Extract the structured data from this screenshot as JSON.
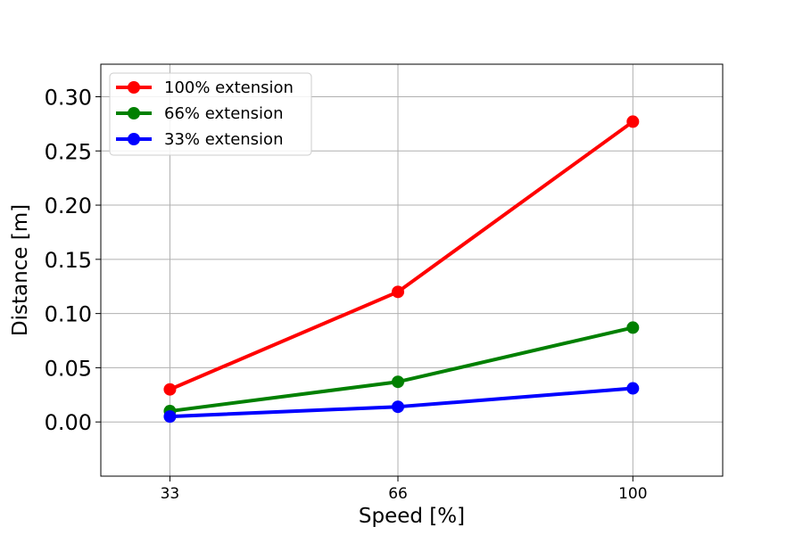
{
  "chart_data": {
    "type": "line",
    "title": "",
    "xlabel": "Speed [%]",
    "ylabel": "Distance [m]",
    "x": [
      33,
      66,
      100
    ],
    "xticks": [
      "33",
      "66",
      "100"
    ],
    "yticks": [
      "0.00",
      "0.05",
      "0.10",
      "0.15",
      "0.20",
      "0.25",
      "0.30"
    ],
    "ylim": [
      -0.05,
      0.33
    ],
    "grid": true,
    "legend_position": "top-left",
    "series": [
      {
        "name": "100% extension",
        "color": "#ff0000",
        "values": [
          0.03,
          0.12,
          0.277
        ]
      },
      {
        "name": "66% extension",
        "color": "#008000",
        "values": [
          0.01,
          0.037,
          0.087
        ]
      },
      {
        "name": "33% extension",
        "color": "#0000ff",
        "values": [
          0.005,
          0.014,
          0.031
        ]
      }
    ]
  }
}
